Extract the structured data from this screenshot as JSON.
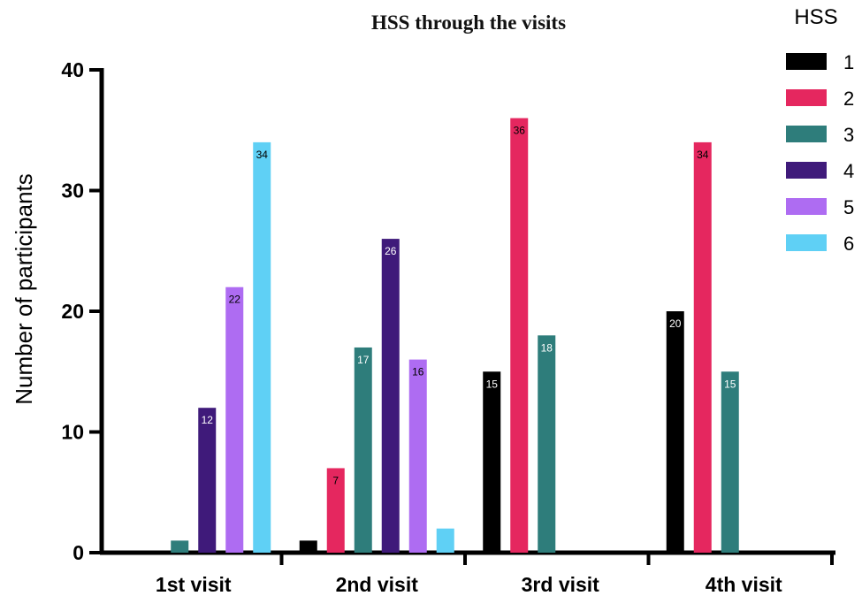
{
  "chart_data": {
    "type": "bar",
    "title": "HSS through the visits",
    "xlabel": "",
    "ylabel": "Number of participants",
    "ylim": [
      0,
      40
    ],
    "yticks": [
      0,
      10,
      20,
      30,
      40
    ],
    "categories": [
      "1st visit",
      "2nd visit",
      "3rd visit",
      "4th visit"
    ],
    "legend_title": "HSS",
    "legend_position": "right",
    "grid": false,
    "series": [
      {
        "name": "1",
        "color": "#000000",
        "label_color": "#ffffff",
        "values": [
          0,
          1,
          15,
          20
        ],
        "labels": [
          "",
          "",
          "15",
          "20"
        ]
      },
      {
        "name": "2",
        "color": "#e5275f",
        "label_color": "#000000",
        "values": [
          0,
          7,
          36,
          34
        ],
        "labels": [
          "",
          "7",
          "36",
          "34"
        ]
      },
      {
        "name": "3",
        "color": "#2e7d7b",
        "label_color": "#ffffff",
        "values": [
          1,
          17,
          18,
          15
        ],
        "labels": [
          "",
          "17",
          "18",
          "15"
        ]
      },
      {
        "name": "4",
        "color": "#3f1a7a",
        "label_color": "#ffffff",
        "values": [
          12,
          26,
          0,
          0
        ],
        "labels": [
          "12",
          "26",
          "",
          ""
        ]
      },
      {
        "name": "5",
        "color": "#ae6cf2",
        "label_color": "#000000",
        "values": [
          22,
          16,
          0,
          0
        ],
        "labels": [
          "22",
          "16",
          "",
          ""
        ]
      },
      {
        "name": "6",
        "color": "#5fd0f5",
        "label_color": "#000000",
        "values": [
          34,
          2,
          0,
          0
        ],
        "labels": [
          "34",
          "",
          "",
          ""
        ]
      }
    ]
  }
}
